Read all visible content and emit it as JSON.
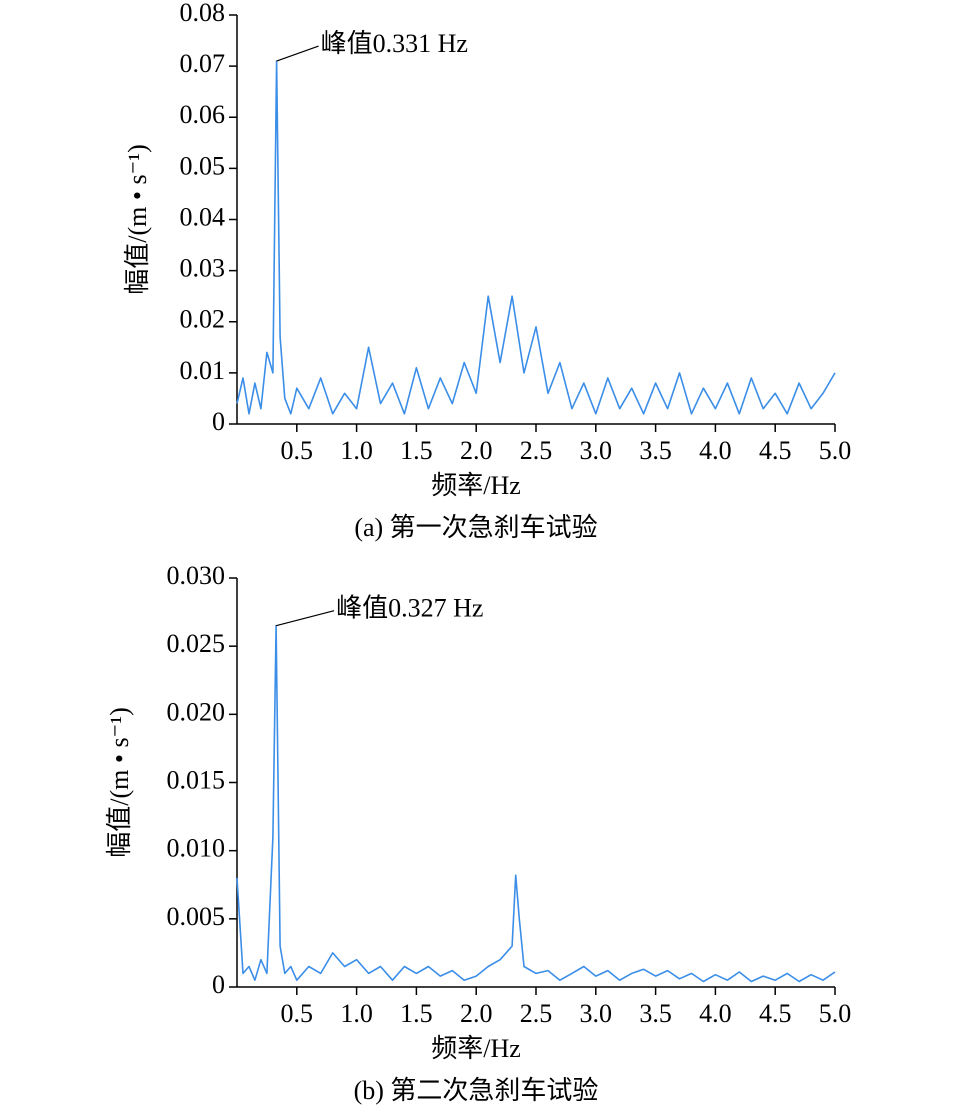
{
  "chart_data": [
    {
      "type": "line",
      "annotation": "峰值0.331 Hz",
      "caption": "(a)  第一次急刹车试验",
      "xlabel": "频率/Hz",
      "ylabel": "幅值/(m • s⁻¹)",
      "xlim": [
        0,
        5
      ],
      "xticks": [
        0.5,
        {
          "value": 1,
          "label": "1.0"
        },
        1.5,
        {
          "value": 2,
          "label": "2.0"
        },
        2.5,
        {
          "value": 3,
          "label": "3.0"
        },
        3.5,
        {
          "value": 4,
          "label": "4.0"
        },
        4.5,
        {
          "value": 5,
          "label": "5.0"
        }
      ],
      "ylim": [
        0,
        0.08
      ],
      "yticks": [
        0,
        0.01,
        0.02,
        0.03,
        0.04,
        0.05,
        0.06,
        0.07,
        0.08
      ],
      "x": [
        0,
        0.05,
        0.1,
        0.15,
        0.2,
        0.25,
        0.3,
        0.331,
        0.36,
        0.4,
        0.45,
        0.5,
        0.6,
        0.7,
        0.8,
        0.9,
        1.0,
        1.1,
        1.2,
        1.3,
        1.4,
        1.5,
        1.6,
        1.7,
        1.8,
        1.9,
        2.0,
        2.1,
        2.2,
        2.3,
        2.4,
        2.5,
        2.6,
        2.7,
        2.8,
        2.9,
        3.0,
        3.1,
        3.2,
        3.3,
        3.4,
        3.5,
        3.6,
        3.7,
        3.8,
        3.9,
        4.0,
        4.1,
        4.2,
        4.3,
        4.4,
        4.5,
        4.6,
        4.7,
        4.8,
        4.9,
        5.0
      ],
      "series": [
        {
          "color": "#3b8ee8",
          "values": [
            0.004,
            0.009,
            0.002,
            0.008,
            0.003,
            0.014,
            0.01,
            0.071,
            0.017,
            0.005,
            0.002,
            0.007,
            0.003,
            0.009,
            0.002,
            0.006,
            0.003,
            0.015,
            0.004,
            0.008,
            0.002,
            0.011,
            0.003,
            0.009,
            0.004,
            0.012,
            0.006,
            0.025,
            0.012,
            0.025,
            0.01,
            0.019,
            0.006,
            0.012,
            0.003,
            0.008,
            0.002,
            0.009,
            0.003,
            0.007,
            0.002,
            0.008,
            0.003,
            0.01,
            0.002,
            0.007,
            0.003,
            0.008,
            0.002,
            0.009,
            0.003,
            0.006,
            0.002,
            0.008,
            0.003,
            0.006,
            0.01
          ]
        }
      ]
    },
    {
      "type": "line",
      "annotation": "峰值0.327 Hz",
      "caption": "(b)  第二次急刹车试验",
      "xlabel": "频率/Hz",
      "ylabel": "幅值/(m • s⁻¹)",
      "xlim": [
        0,
        5
      ],
      "xticks": [
        0.5,
        {
          "value": 1,
          "label": "1.0"
        },
        1.5,
        {
          "value": 2,
          "label": "2.0"
        },
        2.5,
        {
          "value": 3,
          "label": "3.0"
        },
        3.5,
        {
          "value": 4,
          "label": "4.0"
        },
        4.5,
        {
          "value": 5,
          "label": "5.0"
        }
      ],
      "ylim": [
        0,
        0.03
      ],
      "yticks": [
        0,
        0.005,
        {
          "value": 0.01,
          "label": "0.010"
        },
        0.015,
        {
          "value": 0.02,
          "label": "0.020"
        },
        0.025,
        {
          "value": 0.03,
          "label": "0.030"
        }
      ],
      "x": [
        0,
        0.05,
        0.1,
        0.15,
        0.2,
        0.25,
        0.3,
        0.327,
        0.36,
        0.4,
        0.45,
        0.5,
        0.6,
        0.7,
        0.8,
        0.9,
        1.0,
        1.1,
        1.2,
        1.3,
        1.4,
        1.5,
        1.6,
        1.7,
        1.8,
        1.9,
        2.0,
        2.1,
        2.2,
        2.3,
        2.33,
        2.36,
        2.4,
        2.5,
        2.6,
        2.7,
        2.8,
        2.9,
        3.0,
        3.1,
        3.2,
        3.3,
        3.4,
        3.5,
        3.6,
        3.7,
        3.8,
        3.9,
        4.0,
        4.1,
        4.2,
        4.3,
        4.4,
        4.5,
        4.6,
        4.7,
        4.8,
        4.9,
        5.0
      ],
      "series": [
        {
          "color": "#3b8ee8",
          "values": [
            0.008,
            0.001,
            0.0015,
            0.0005,
            0.002,
            0.001,
            0.011,
            0.0265,
            0.003,
            0.001,
            0.0015,
            0.0005,
            0.0015,
            0.001,
            0.0025,
            0.0015,
            0.002,
            0.001,
            0.0015,
            0.0005,
            0.0015,
            0.001,
            0.0015,
            0.0008,
            0.0012,
            0.0005,
            0.0008,
            0.0015,
            0.002,
            0.003,
            0.0082,
            0.005,
            0.0015,
            0.001,
            0.0012,
            0.0005,
            0.001,
            0.0015,
            0.0008,
            0.0012,
            0.0005,
            0.001,
            0.0013,
            0.0008,
            0.0012,
            0.0006,
            0.001,
            0.0004,
            0.0009,
            0.0005,
            0.0011,
            0.0004,
            0.0008,
            0.0005,
            0.001,
            0.0004,
            0.0009,
            0.0005,
            0.0011
          ]
        }
      ]
    }
  ]
}
